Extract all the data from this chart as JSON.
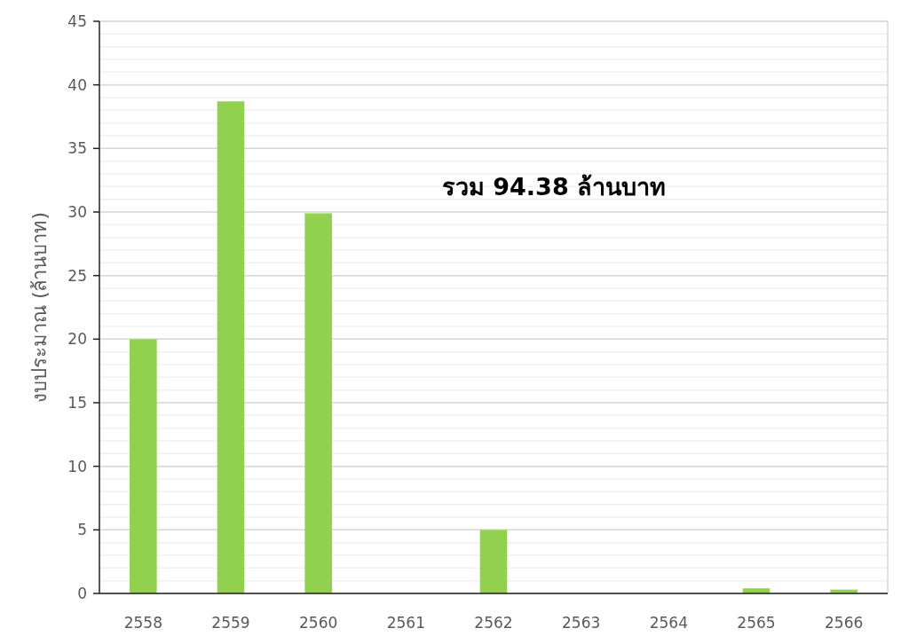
{
  "chart_data": {
    "type": "bar",
    "ylabel": "งบประมาณ (ล้านบาท)",
    "categories": [
      "2558",
      "2559",
      "2560",
      "2561",
      "2562",
      "2563",
      "2564",
      "2565",
      "2566"
    ],
    "values": [
      20,
      38.7,
      29.9,
      0,
      5,
      0,
      0,
      0.4,
      0.3
    ],
    "color": "#92d050",
    "ylim": [
      0,
      45
    ],
    "yticks": [
      0,
      5,
      10,
      15,
      20,
      25,
      30,
      35,
      40,
      45
    ],
    "grid": "y",
    "annotations": [
      "รวม 94.38 ล้านบาท"
    ]
  }
}
